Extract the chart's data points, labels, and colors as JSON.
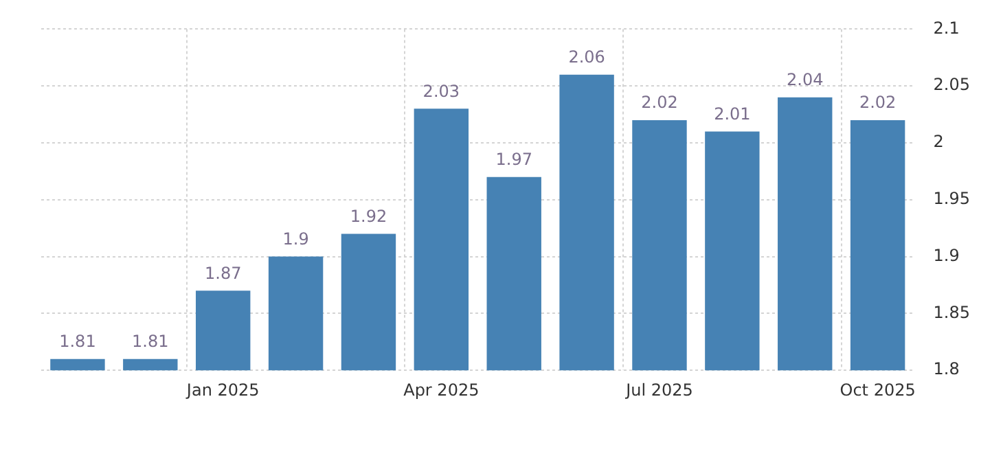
{
  "chart_data": {
    "type": "bar",
    "categories": [
      null,
      null,
      "Jan 2025",
      null,
      null,
      "Apr 2025",
      null,
      null,
      "Jul 2025",
      null,
      null,
      "Oct 2025"
    ],
    "values": [
      1.81,
      1.81,
      1.87,
      1.9,
      1.92,
      2.03,
      1.97,
      2.06,
      2.02,
      2.01,
      2.04,
      2.02
    ],
    "color": "#4682b4",
    "ylim": [
      1.8,
      2.1
    ],
    "yticks": [
      1.8,
      1.85,
      1.9,
      1.95,
      2,
      2.05,
      2.1
    ],
    "grid": true,
    "legend": false,
    "data_labels": true
  }
}
